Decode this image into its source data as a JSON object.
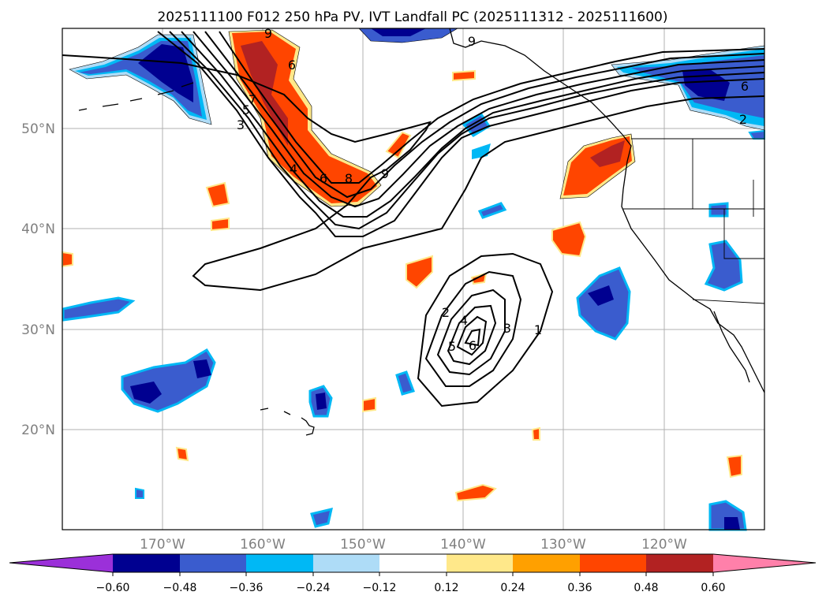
{
  "title": "2025111100 F012 250 hPa PV, IVT Landfall PC (2025111312 - 2025111600)",
  "map": {
    "lat_labels": [
      "50°N",
      "40°N",
      "30°N",
      "20°N"
    ],
    "lon_labels": [
      "170°W",
      "160°W",
      "150°W",
      "140°W",
      "130°W",
      "120°W"
    ],
    "contour_labels": [
      "9",
      "7",
      "5",
      "3",
      "6",
      "4",
      "6",
      "8",
      "9",
      "9",
      "2",
      "4",
      "5",
      "6",
      "3",
      "1",
      "6",
      "2"
    ]
  },
  "colorbar": {
    "ticks": [
      "−0.60",
      "−0.48",
      "−0.36",
      "−0.24",
      "−0.12",
      "0.12",
      "0.24",
      "0.36",
      "0.48",
      "0.60"
    ],
    "colors": {
      "under": "#9b30d9",
      "c1": "#000090",
      "c2": "#3a5cce",
      "c3": "#00b8f5",
      "c4": "#aedcf7",
      "c5": "#ffffff",
      "c6": "#ffe88a",
      "c7": "#ffa000",
      "c8": "#ff4500",
      "c9": "#b22222",
      "over": "#ff80aa"
    }
  }
}
